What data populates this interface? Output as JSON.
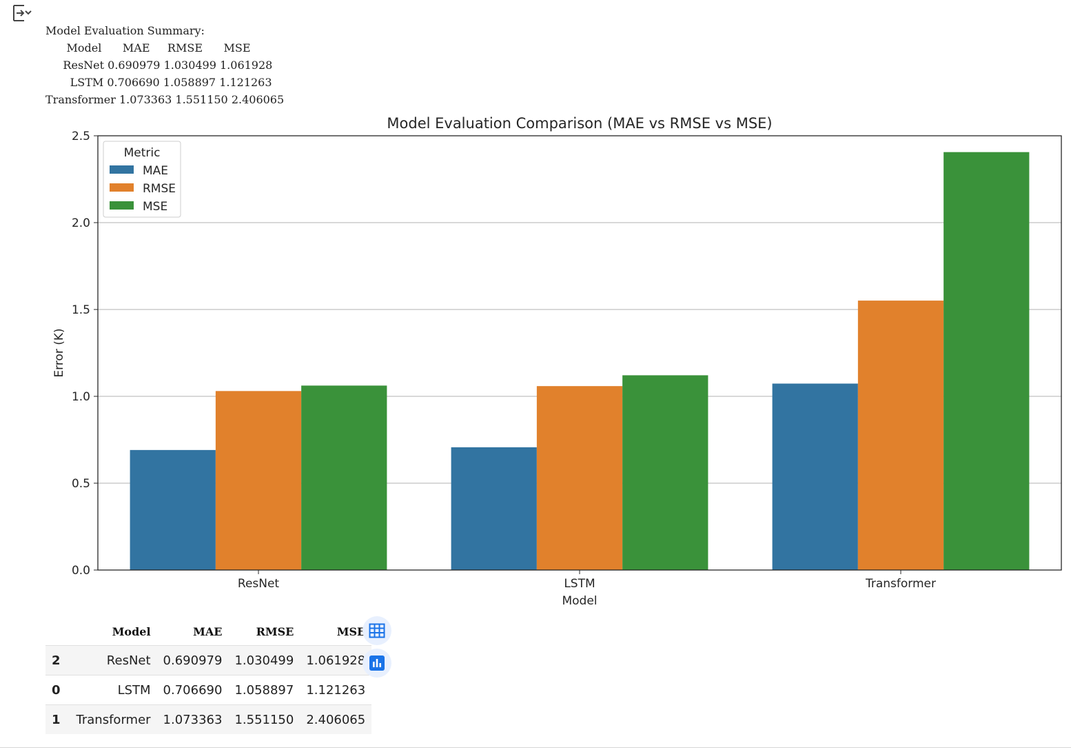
{
  "summary_text": "Model Evaluation Summary:\n      Model      MAE     RMSE      MSE\n     ResNet 0.690979 1.030499 1.061928\n       LSTM 0.706690 1.058897 1.121263\nTransformer 1.073363 1.551150 2.406065",
  "icons": {
    "output_toggle": "output-toggle-icon",
    "table_button": "table-view-icon",
    "chart_button": "chart-suggestion-icon"
  },
  "chart_data": {
    "type": "bar",
    "title": "Model Evaluation Comparison (MAE vs RMSE vs MSE)",
    "xlabel": "Model",
    "ylabel": "Error (K)",
    "categories": [
      "ResNet",
      "LSTM",
      "Transformer"
    ],
    "series": [
      {
        "name": "MAE",
        "values": [
          0.690979,
          0.70669,
          1.073363
        ],
        "color": "#3274a1"
      },
      {
        "name": "RMSE",
        "values": [
          1.030499,
          1.058897,
          1.55115
        ],
        "color": "#e1812c"
      },
      {
        "name": "MSE",
        "values": [
          1.061928,
          1.121263,
          2.406065
        ],
        "color": "#3a923a"
      }
    ],
    "ylim": [
      0,
      2.5
    ],
    "yticks": [
      "0.0",
      "0.5",
      "1.0",
      "1.5",
      "2.0",
      "2.5"
    ],
    "grid": true,
    "legend": {
      "title": "Metric",
      "position": "top-left"
    }
  },
  "dataframe": {
    "headers": [
      "",
      "Model",
      "MAE",
      "RMSE",
      "MSE"
    ],
    "rows": [
      {
        "index": "2",
        "model": "ResNet",
        "mae": "0.690979",
        "rmse": "1.030499",
        "mse": "1.061928"
      },
      {
        "index": "0",
        "model": "LSTM",
        "mae": "0.706690",
        "rmse": "1.058897",
        "mse": "1.121263"
      },
      {
        "index": "1",
        "model": "Transformer",
        "mae": "1.073363",
        "rmse": "1.551150",
        "mse": "2.406065"
      }
    ]
  },
  "colors": {
    "accent": "#1a73e8",
    "button_bg": "#e8f0fe"
  }
}
